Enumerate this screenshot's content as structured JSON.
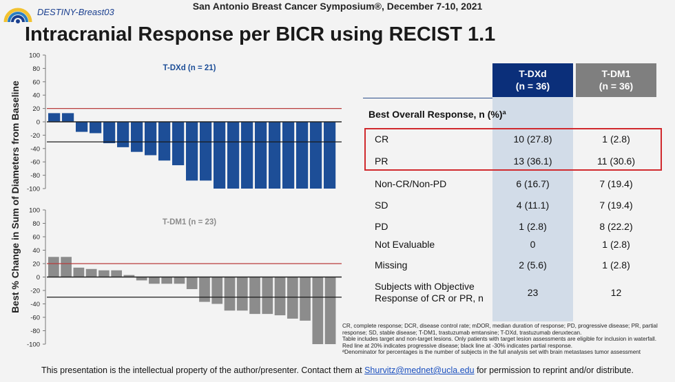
{
  "header": {
    "trial_name": "DESTINY-Breast03",
    "conference": "San Antonio Breast Cancer Symposium®, December 7-10, 2021",
    "slide_title": "Intracranial Response per BICR using RECIST 1.1"
  },
  "y_axis_label": "Best % Change in Sum of Diameters from Baseline",
  "chart_data": [
    {
      "type": "bar",
      "title": "T-DXd (n = 21)",
      "ylim": [
        -100,
        100
      ],
      "yticks": [
        100,
        80,
        60,
        40,
        20,
        0,
        -20,
        -40,
        -60,
        -80,
        -100
      ],
      "reference_lines": [
        20,
        -30
      ],
      "values": [
        13,
        13,
        -15,
        -17,
        -32,
        -38,
        -45,
        -50,
        -58,
        -65,
        -88,
        -88,
        -100,
        -100,
        -100,
        -100,
        -100,
        -100,
        -100,
        -100,
        -100
      ],
      "color": "#1d4e97"
    },
    {
      "type": "bar",
      "title": "T-DM1 (n = 23)",
      "ylim": [
        -100,
        100
      ],
      "yticks": [
        100,
        80,
        60,
        40,
        20,
        0,
        -20,
        -40,
        -60,
        -80,
        -100
      ],
      "reference_lines": [
        20,
        -30
      ],
      "values": [
        30,
        30,
        14,
        12,
        10,
        10,
        3,
        -5,
        -10,
        -10,
        -10,
        -18,
        -37,
        -40,
        -50,
        -50,
        -55,
        -55,
        -57,
        -62,
        -65,
        -100,
        -100
      ],
      "color": "#8c8c8c"
    }
  ],
  "table": {
    "columns": [
      {
        "name": "T-DXd",
        "n": "(n = 36)",
        "color": "#0b2f7a"
      },
      {
        "name": "T-DM1",
        "n": "(n = 36)",
        "color": "#7f7f7f"
      }
    ],
    "section_label": "Best Overall Response, n (%)ª",
    "rows": [
      {
        "label": "CR",
        "tdxd": "10 (27.8)",
        "tdm1": "1 (2.8)"
      },
      {
        "label": "PR",
        "tdxd": "13 (36.1)",
        "tdm1": "11 (30.6)"
      },
      {
        "label": "Non-CR/Non-PD",
        "tdxd": "6 (16.7)",
        "tdm1": "7 (19.4)"
      },
      {
        "label": "SD",
        "tdxd": "4 (11.1)",
        "tdm1": "7 (19.4)"
      },
      {
        "label": "PD",
        "tdxd": "1 (2.8)",
        "tdm1": "8 (22.2)"
      },
      {
        "label": "Not Evaluable",
        "tdxd": "0",
        "tdm1": "1 (2.8)"
      },
      {
        "label": "Missing",
        "tdxd": "2 (5.6)",
        "tdm1": "1 (2.8)"
      },
      {
        "label_line1": "Subjects with Objective",
        "label_line2": "Response of CR or PR, n",
        "tdxd": "23",
        "tdm1": "12"
      }
    ]
  },
  "footnotes": [
    "CR, complete response; DCR, disease control rate; mDOR, median duration of response; PD, progressive disease; PR, partial response; SD, stable disease; T-DM1, trastuzumab emtansine; T-DXd, trastuzumab deruxtecan.",
    "Table includes target and non-target lesions. Only patients with target lesion assessments are eligible for inclusion in waterfall.",
    "Red line at 20% indicates progressive disease; black line at -30% indicates partial response.",
    "ªDenominator for percentages is the number of subjects in the full analysis set with brain metastases tumor assessment"
  ],
  "footer": {
    "text_before": "This presentation is the intellectual property of the author/presenter. Contact them at",
    "email": "Shurvitz@mednet@ucla.edu",
    "text_after": "for permission to reprint and/or distribute."
  }
}
